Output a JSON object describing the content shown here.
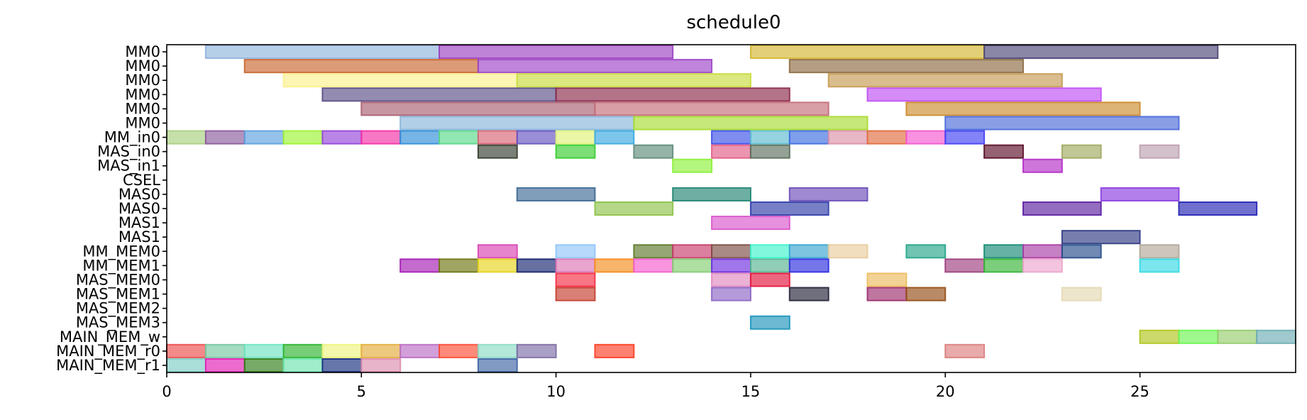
{
  "chart_data": {
    "type": "gantt",
    "title": "schedule0",
    "xlabel": "",
    "ylabel": "",
    "xlim": [
      0,
      29
    ],
    "x_ticks": [
      0,
      5,
      10,
      15,
      20,
      25
    ],
    "grid": false,
    "legend": "none",
    "rows": [
      "MM0",
      "MM0",
      "MM0",
      "MM0",
      "MM0",
      "MM0",
      "MM_in0",
      "MAS_in0",
      "MAS_in1",
      "CSEL",
      "MAS0",
      "MAS0",
      "MAS1",
      "MAS1",
      "MM_MEM0",
      "MM_MEM1",
      "MAS_MEM0",
      "MAS_MEM1",
      "MAS_MEM2",
      "MAS_MEM3",
      "MAIN_MEM_w",
      "MAIN_MEM_r0",
      "MAIN_MEM_r1"
    ],
    "tasks": [
      {
        "row": 0,
        "start": 1,
        "end": 7,
        "color": "#8fb3dc"
      },
      {
        "row": 0,
        "start": 7,
        "end": 13,
        "color": "#9b3fc0"
      },
      {
        "row": 0,
        "start": 15,
        "end": 21,
        "color": "#d4b530"
      },
      {
        "row": 0,
        "start": 21,
        "end": 27,
        "color": "#4a4576"
      },
      {
        "row": 1,
        "start": 2,
        "end": 8,
        "color": "#c9652e"
      },
      {
        "row": 1,
        "start": 8,
        "end": 14,
        "color": "#9c44c6"
      },
      {
        "row": 1,
        "start": 16,
        "end": 22,
        "color": "#8c6a40"
      },
      {
        "row": 2,
        "start": 3,
        "end": 9,
        "color": "#fbf08c"
      },
      {
        "row": 2,
        "start": 9,
        "end": 15,
        "color": "#c8dc3c"
      },
      {
        "row": 2,
        "start": 17,
        "end": 23,
        "color": "#c69a52"
      },
      {
        "row": 3,
        "start": 4,
        "end": 10,
        "color": "#5a4e86"
      },
      {
        "row": 3,
        "start": 10,
        "end": 16,
        "color": "#8a2a4c"
      },
      {
        "row": 3,
        "start": 18,
        "end": 24,
        "color": "#c04ef4"
      },
      {
        "row": 4,
        "start": 5,
        "end": 11,
        "color": "#a85e70"
      },
      {
        "row": 4,
        "start": 11,
        "end": 17,
        "color": "#c46c78"
      },
      {
        "row": 4,
        "start": 19,
        "end": 25,
        "color": "#cc8a2c"
      },
      {
        "row": 5,
        "start": 6,
        "end": 12,
        "color": "#88b6dc"
      },
      {
        "row": 5,
        "start": 12,
        "end": 18,
        "color": "#a8dc30"
      },
      {
        "row": 5,
        "start": 20,
        "end": 26,
        "color": "#4a6ad8"
      },
      {
        "row": 6,
        "start": 0,
        "end": 1,
        "color": "#a8d080"
      },
      {
        "row": 6,
        "start": 1,
        "end": 2,
        "color": "#8a5a9c"
      },
      {
        "row": 6,
        "start": 2,
        "end": 3,
        "color": "#5ca0e0"
      },
      {
        "row": 6,
        "start": 3,
        "end": 4,
        "color": "#9cf230"
      },
      {
        "row": 6,
        "start": 4,
        "end": 5,
        "color": "#9444d8"
      },
      {
        "row": 6,
        "start": 5,
        "end": 6,
        "color": "#f42ea4"
      },
      {
        "row": 6,
        "start": 6,
        "end": 7,
        "color": "#2e8ed8"
      },
      {
        "row": 6,
        "start": 7,
        "end": 8,
        "color": "#58d888"
      },
      {
        "row": 6,
        "start": 8,
        "end": 9,
        "color": "#d86474"
      },
      {
        "row": 6,
        "start": 9,
        "end": 10,
        "color": "#6452c0"
      },
      {
        "row": 6,
        "start": 10,
        "end": 11,
        "color": "#e0f278"
      },
      {
        "row": 6,
        "start": 11,
        "end": 12,
        "color": "#38a8e0"
      },
      {
        "row": 6,
        "start": 14,
        "end": 15,
        "color": "#3a50e8"
      },
      {
        "row": 6,
        "start": 15,
        "end": 16,
        "color": "#5cbcd0"
      },
      {
        "row": 6,
        "start": 16,
        "end": 17,
        "color": "#3c6ce0"
      },
      {
        "row": 6,
        "start": 17,
        "end": 18,
        "color": "#dc90a8"
      },
      {
        "row": 6,
        "start": 18,
        "end": 19,
        "color": "#e06c3c"
      },
      {
        "row": 6,
        "start": 19,
        "end": 20,
        "color": "#f256d0"
      },
      {
        "row": 6,
        "start": 20,
        "end": 21,
        "color": "#4040f4"
      },
      {
        "row": 7,
        "start": 8,
        "end": 9,
        "color": "#343e2c"
      },
      {
        "row": 7,
        "start": 10,
        "end": 11,
        "color": "#36cc2c"
      },
      {
        "row": 7,
        "start": 12,
        "end": 13,
        "color": "#5e8a78"
      },
      {
        "row": 7,
        "start": 14,
        "end": 15,
        "color": "#e25c86"
      },
      {
        "row": 7,
        "start": 15,
        "end": 16,
        "color": "#5a6e5a"
      },
      {
        "row": 7,
        "start": 21,
        "end": 22,
        "color": "#5a0e26"
      },
      {
        "row": 7,
        "start": 23,
        "end": 24,
        "color": "#a0a860"
      },
      {
        "row": 7,
        "start": 25,
        "end": 26,
        "color": "#bca0b0"
      },
      {
        "row": 8,
        "start": 13,
        "end": 14,
        "color": "#8cf038"
      },
      {
        "row": 8,
        "start": 22,
        "end": 23,
        "color": "#b42cc4"
      },
      {
        "row": 10,
        "start": 9,
        "end": 11,
        "color": "#3c6894"
      },
      {
        "row": 10,
        "start": 13,
        "end": 15,
        "color": "#1e8470"
      },
      {
        "row": 10,
        "start": 16,
        "end": 18,
        "color": "#6a4cb8"
      },
      {
        "row": 10,
        "start": 24,
        "end": 26,
        "color": "#8a3ce0"
      },
      {
        "row": 11,
        "start": 11,
        "end": 13,
        "color": "#8cc248"
      },
      {
        "row": 11,
        "start": 15,
        "end": 17,
        "color": "#2e3ca8"
      },
      {
        "row": 11,
        "start": 22,
        "end": 24,
        "color": "#5a1ea0"
      },
      {
        "row": 11,
        "start": 26,
        "end": 28,
        "color": "#2424b4"
      },
      {
        "row": 12,
        "start": 14,
        "end": 16,
        "color": "#d854cc"
      },
      {
        "row": 13,
        "start": 23,
        "end": 25,
        "color": "#303a84"
      },
      {
        "row": 14,
        "start": 8,
        "end": 9,
        "color": "#d844b4"
      },
      {
        "row": 14,
        "start": 10,
        "end": 11,
        "color": "#90c4f8"
      },
      {
        "row": 14,
        "start": 12,
        "end": 13,
        "color": "#5c7a28"
      },
      {
        "row": 14,
        "start": 13,
        "end": 14,
        "color": "#c83c6c"
      },
      {
        "row": 14,
        "start": 14,
        "end": 15,
        "color": "#7c4c44"
      },
      {
        "row": 14,
        "start": 15,
        "end": 16,
        "color": "#3cf4cc"
      },
      {
        "row": 14,
        "start": 16,
        "end": 17,
        "color": "#38a4d0"
      },
      {
        "row": 14,
        "start": 17,
        "end": 18,
        "color": "#e8cc9c"
      },
      {
        "row": 14,
        "start": 19,
        "end": 20,
        "color": "#24a488"
      },
      {
        "row": 14,
        "start": 21,
        "end": 22,
        "color": "#148a74"
      },
      {
        "row": 14,
        "start": 22,
        "end": 23,
        "color": "#a83ca4"
      },
      {
        "row": 14,
        "start": 23,
        "end": 24,
        "color": "#254c8a"
      },
      {
        "row": 14,
        "start": 25,
        "end": 26,
        "color": "#b0a898"
      },
      {
        "row": 15,
        "start": 6,
        "end": 7,
        "color": "#a41cb4"
      },
      {
        "row": 15,
        "start": 7,
        "end": 8,
        "color": "#6e7410"
      },
      {
        "row": 15,
        "start": 8,
        "end": 9,
        "color": "#e6d41c"
      },
      {
        "row": 15,
        "start": 9,
        "end": 10,
        "color": "#14246e"
      },
      {
        "row": 15,
        "start": 10,
        "end": 11,
        "color": "#dc74b4"
      },
      {
        "row": 15,
        "start": 11,
        "end": 12,
        "color": "#f48c1c"
      },
      {
        "row": 15,
        "start": 12,
        "end": 13,
        "color": "#f45ccc"
      },
      {
        "row": 15,
        "start": 13,
        "end": 14,
        "color": "#84cc70"
      },
      {
        "row": 15,
        "start": 14,
        "end": 15,
        "color": "#6e2ce0"
      },
      {
        "row": 15,
        "start": 15,
        "end": 16,
        "color": "#54b490"
      },
      {
        "row": 15,
        "start": 16,
        "end": 17,
        "color": "#2c2ce0"
      },
      {
        "row": 15,
        "start": 20,
        "end": 21,
        "color": "#9c3e7e"
      },
      {
        "row": 15,
        "start": 21,
        "end": 22,
        "color": "#34b434"
      },
      {
        "row": 15,
        "start": 22,
        "end": 23,
        "color": "#eca4cc"
      },
      {
        "row": 15,
        "start": 25,
        "end": 26,
        "color": "#34d8e4"
      },
      {
        "row": 16,
        "start": 10,
        "end": 11,
        "color": "#f42c44"
      },
      {
        "row": 16,
        "start": 14,
        "end": 15,
        "color": "#e088c0"
      },
      {
        "row": 16,
        "start": 15,
        "end": 16,
        "color": "#e4143c"
      },
      {
        "row": 16,
        "start": 18,
        "end": 19,
        "color": "#ecbc5c"
      },
      {
        "row": 17,
        "start": 10,
        "end": 11,
        "color": "#c43c2c"
      },
      {
        "row": 17,
        "start": 14,
        "end": 15,
        "color": "#8c64c4"
      },
      {
        "row": 17,
        "start": 16,
        "end": 17,
        "color": "#242238"
      },
      {
        "row": 17,
        "start": 18,
        "end": 19,
        "color": "#9c2c6c"
      },
      {
        "row": 17,
        "start": 19,
        "end": 20,
        "color": "#944c14"
      },
      {
        "row": 17,
        "start": 23,
        "end": 24,
        "color": "#e4d8b0"
      },
      {
        "row": 19,
        "start": 15,
        "end": 16,
        "color": "#1c94bc"
      },
      {
        "row": 20,
        "start": 25,
        "end": 26,
        "color": "#b0c41c"
      },
      {
        "row": 20,
        "start": 26,
        "end": 27,
        "color": "#6cf450"
      },
      {
        "row": 20,
        "start": 27,
        "end": 28,
        "color": "#94cc6c"
      },
      {
        "row": 20,
        "start": 28,
        "end": 29,
        "color": "#6cacb4"
      },
      {
        "row": 21,
        "start": 0,
        "end": 1,
        "color": "#ec4c4c"
      },
      {
        "row": 21,
        "start": 1,
        "end": 2,
        "color": "#74c8a0"
      },
      {
        "row": 21,
        "start": 2,
        "end": 3,
        "color": "#6ce4c0"
      },
      {
        "row": 21,
        "start": 3,
        "end": 4,
        "color": "#2cb42c"
      },
      {
        "row": 21,
        "start": 4,
        "end": 5,
        "color": "#ecf47c"
      },
      {
        "row": 21,
        "start": 5,
        "end": 6,
        "color": "#e4ac3c"
      },
      {
        "row": 21,
        "start": 6,
        "end": 7,
        "color": "#bc6cc4"
      },
      {
        "row": 21,
        "start": 7,
        "end": 8,
        "color": "#fc4c34"
      },
      {
        "row": 21,
        "start": 8,
        "end": 9,
        "color": "#8cdcc4"
      },
      {
        "row": 21,
        "start": 9,
        "end": 10,
        "color": "#7c6ca4"
      },
      {
        "row": 21,
        "start": 11,
        "end": 12,
        "color": "#fc3c24"
      },
      {
        "row": 21,
        "start": 20,
        "end": 21,
        "color": "#dc7c7c"
      },
      {
        "row": 22,
        "start": 0,
        "end": 1,
        "color": "#7cccc4"
      },
      {
        "row": 22,
        "start": 1,
        "end": 2,
        "color": "#e41cb4"
      },
      {
        "row": 22,
        "start": 2,
        "end": 3,
        "color": "#2c7c14"
      },
      {
        "row": 22,
        "start": 3,
        "end": 4,
        "color": "#6ce4ac"
      },
      {
        "row": 22,
        "start": 4,
        "end": 5,
        "color": "#142c7c"
      },
      {
        "row": 22,
        "start": 5,
        "end": 6,
        "color": "#dc8cac"
      },
      {
        "row": 22,
        "start": 8,
        "end": 9,
        "color": "#3c64a4"
      }
    ]
  }
}
